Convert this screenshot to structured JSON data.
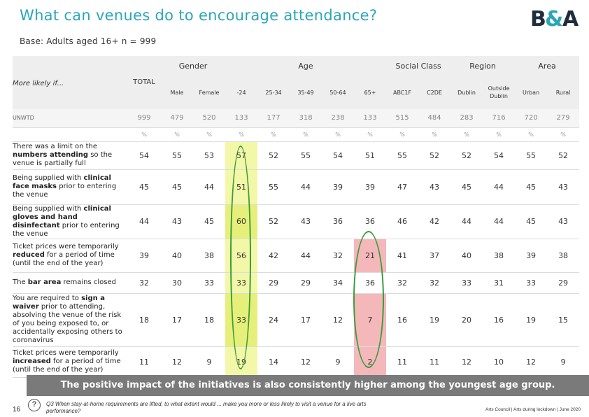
{
  "title": "What can venues do to encourage attendance?",
  "base": "Base: Adults aged 16+ n = 999",
  "colors": {
    "title": "#2aa6b8",
    "highlight_yellow": "#f3f7a8",
    "highlight_green": "#e6ef7a",
    "highlight_red": "#f4b8bb",
    "circle": "#3a9d3a",
    "banner": "#7a7a7a"
  },
  "table": {
    "row_header": "More likely if...",
    "total_label": "TOTAL",
    "groups": {
      "gender": "Gender",
      "age": "Age",
      "social": "Social Class",
      "region": "Region",
      "area": "Area"
    },
    "columns": [
      "Male",
      "Female",
      "-24",
      "25-34",
      "35-49",
      "50-64",
      "65+",
      "ABC1F",
      "C2DE",
      "Dublin",
      "Outside Dublin",
      "Urban",
      "Rural"
    ],
    "unweighted_label": "UNWTD",
    "unweighted": [
      "999",
      "479",
      "520",
      "133",
      "177",
      "318",
      "238",
      "133",
      "515",
      "484",
      "283",
      "716",
      "720",
      "279"
    ],
    "pct_symbol": "%",
    "rows": [
      {
        "pre": "There was a limit on the ",
        "bold": "numbers attending",
        "post": " so the venue is partially full",
        "values": [
          "54",
          "55",
          "53",
          "57",
          "52",
          "55",
          "54",
          "51",
          "55",
          "52",
          "52",
          "54",
          "55",
          "52"
        ]
      },
      {
        "pre": "Being supplied with ",
        "bold": "clinical face masks",
        "post": " prior to entering the venue",
        "values": [
          "45",
          "45",
          "44",
          "51",
          "55",
          "44",
          "39",
          "39",
          "47",
          "43",
          "45",
          "44",
          "45",
          "43"
        ]
      },
      {
        "pre": "Being supplied with ",
        "bold": "clinical gloves and hand disinfectant",
        "post": " prior to entering the venue",
        "values": [
          "44",
          "43",
          "45",
          "60",
          "52",
          "43",
          "36",
          "36",
          "46",
          "42",
          "44",
          "44",
          "45",
          "43"
        ]
      },
      {
        "pre": "Ticket prices were temporarily ",
        "bold": "reduced",
        "post": " for a period of time (until the end of the year)",
        "values": [
          "39",
          "40",
          "38",
          "56",
          "42",
          "44",
          "32",
          "21",
          "41",
          "37",
          "40",
          "38",
          "39",
          "38"
        ]
      },
      {
        "pre": "The ",
        "bold": "bar area",
        "post": " remains closed",
        "values": [
          "32",
          "30",
          "33",
          "33",
          "29",
          "29",
          "34",
          "36",
          "32",
          "32",
          "33",
          "31",
          "33",
          "29"
        ]
      },
      {
        "pre": "You are required to ",
        "bold": "sign a waiver",
        "post": " prior to attending, absolving the venue of the risk of you being exposed to, or accidentally exposing others to coronavirus",
        "values": [
          "18",
          "17",
          "18",
          "33",
          "24",
          "17",
          "12",
          "7",
          "16",
          "19",
          "20",
          "16",
          "19",
          "15"
        ]
      },
      {
        "pre": "Ticket prices were temporarily ",
        "bold": "increased",
        "post": " for a period of time (until the end of the year)",
        "values": [
          "11",
          "12",
          "9",
          "19",
          "14",
          "12",
          "9",
          "2",
          "11",
          "11",
          "12",
          "10",
          "12",
          "9"
        ]
      }
    ]
  },
  "banner": "The positive impact of the initiatives is also consistently higher among the youngest age group.",
  "page_number": "16",
  "question": "Q3 When stay-at-home requirements are lifted, to what extent would ... make you more or less likely to visit a venue for a live arts performance?",
  "footer_right": "Arts Council | Arts during lockdown | June 2020",
  "logo_text": "B&A"
}
